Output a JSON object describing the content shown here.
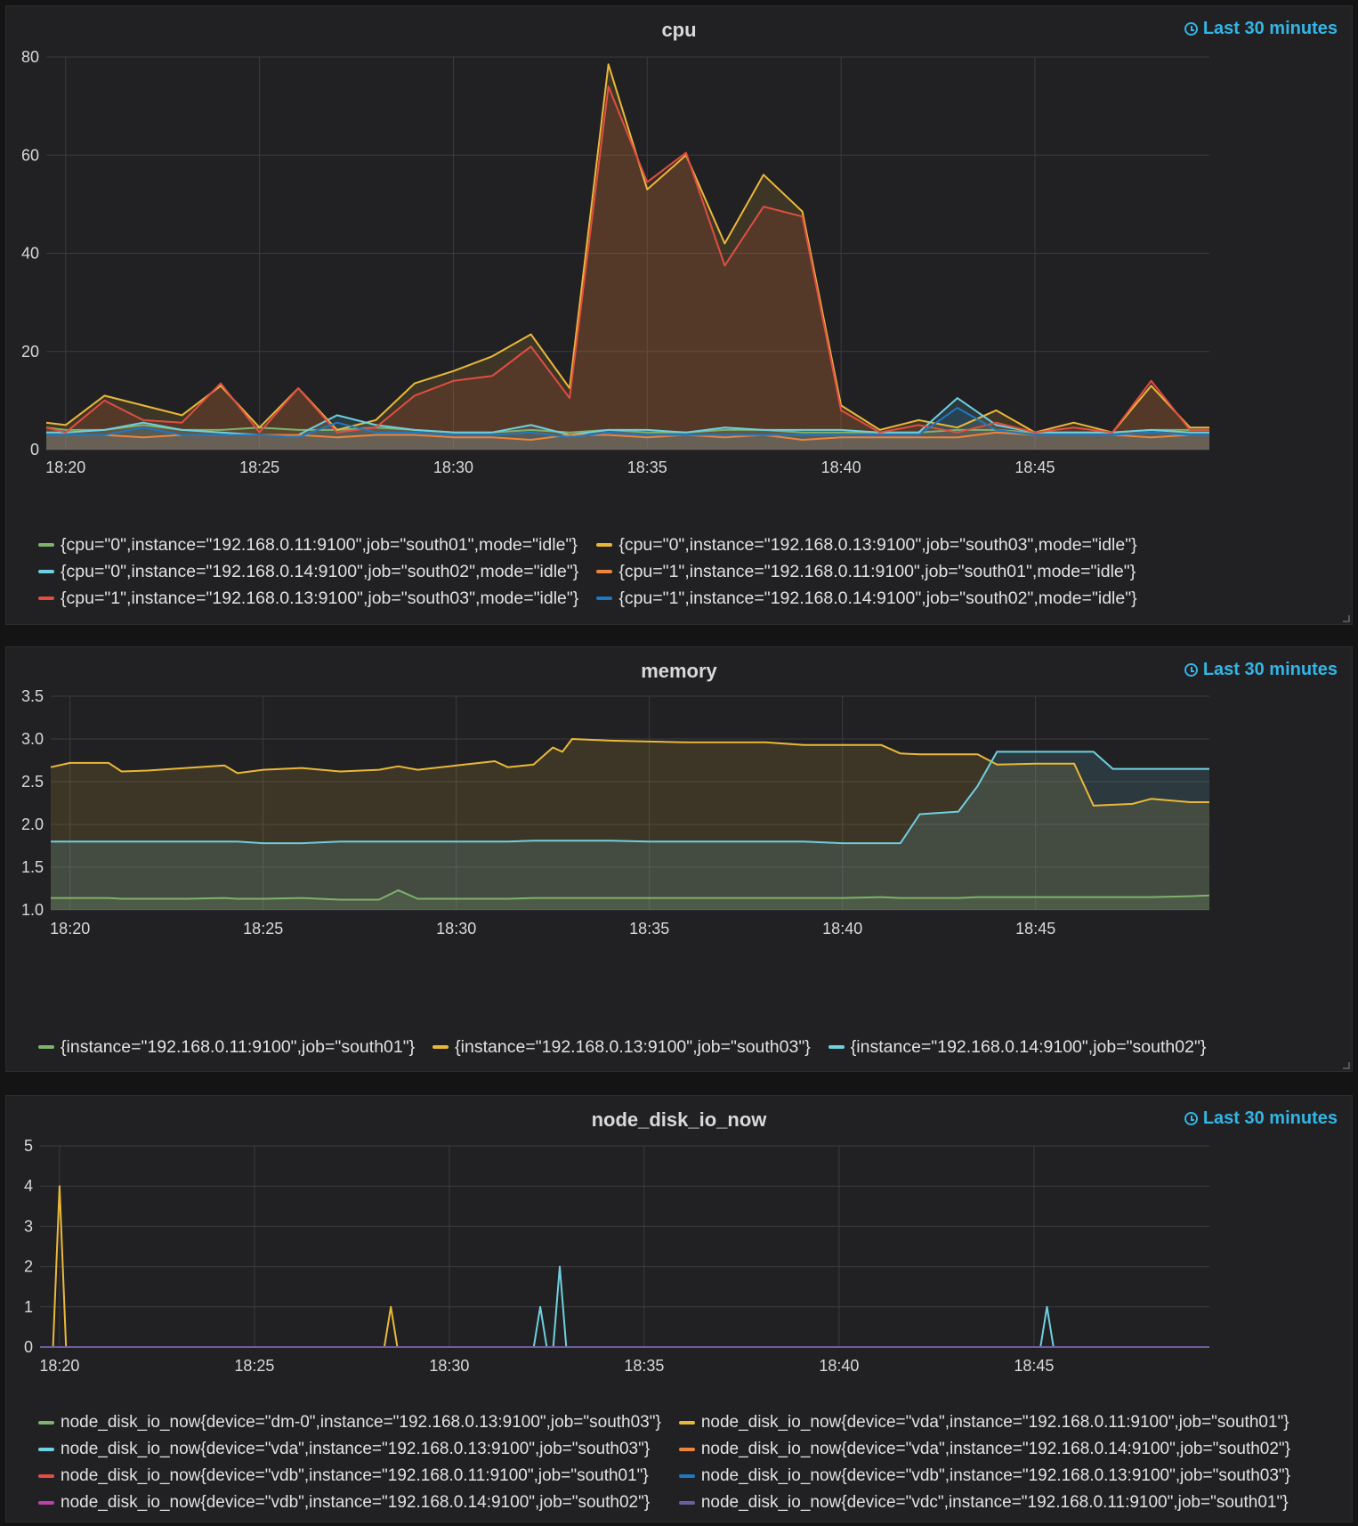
{
  "panels": [
    {
      "title": "cpu",
      "time_range": "Last 30 minutes",
      "icon": "clock-icon"
    },
    {
      "title": "memory",
      "time_range": "Last 30 minutes",
      "icon": "clock-icon"
    },
    {
      "title": "node_disk_io_now",
      "time_range": "Last 30 minutes",
      "icon": "clock-icon"
    }
  ],
  "chart_data": [
    {
      "type": "area",
      "title": "cpu",
      "xlabel": "",
      "ylabel": "",
      "x_ticks": [
        "18:20",
        "18:25",
        "18:30",
        "18:35",
        "18:40",
        "18:45"
      ],
      "y_ticks": [
        0,
        20,
        40,
        60,
        80
      ],
      "ylim": [
        0,
        80
      ],
      "xlim": [
        "18:19:30",
        "18:49:30"
      ],
      "grid": true,
      "legend_position": "bottom",
      "x": [
        "18:19:30",
        "18:20",
        "18:21",
        "18:22",
        "18:23",
        "18:24",
        "18:25",
        "18:26",
        "18:27",
        "18:28",
        "18:29",
        "18:30",
        "18:31",
        "18:32",
        "18:33",
        "18:34",
        "18:35",
        "18:36",
        "18:37",
        "18:38",
        "18:39",
        "18:40",
        "18:41",
        "18:42",
        "18:43",
        "18:44",
        "18:45",
        "18:46",
        "18:47",
        "18:48",
        "18:49",
        "18:49:30"
      ],
      "series": [
        {
          "name": "{cpu=\"0\",instance=\"192.168.0.11:9100\",job=\"south01\",mode=\"idle\"}",
          "color": "#7eb26d",
          "values": [
            4.5,
            4,
            4,
            5,
            4,
            4,
            4.5,
            4,
            4,
            4.5,
            4,
            3.5,
            3.5,
            4,
            3.5,
            4,
            3.5,
            3.5,
            4,
            4,
            3.5,
            3.5,
            3.5,
            3.5,
            4,
            4,
            3.5,
            3.5,
            3.5,
            4,
            4,
            4
          ]
        },
        {
          "name": "{cpu=\"0\",instance=\"192.168.0.13:9100\",job=\"south03\",mode=\"idle\"}",
          "color": "#eab839",
          "values": [
            5.5,
            5,
            11,
            9,
            7,
            13,
            4.5,
            12.5,
            4,
            6,
            13.5,
            16,
            19,
            23.5,
            12.5,
            78.5,
            53,
            60,
            42,
            56,
            48.5,
            9,
            4,
            6,
            4.5,
            8,
            3.5,
            5.5,
            3.5,
            13,
            4.5,
            4.5
          ]
        },
        {
          "name": "{cpu=\"0\",instance=\"192.168.0.14:9100\",job=\"south02\",mode=\"idle\"}",
          "color": "#6ed0e0",
          "values": [
            3.5,
            3.5,
            4,
            5.5,
            4,
            3.5,
            3,
            3,
            7,
            5,
            4,
            3.5,
            3.5,
            5,
            3,
            4,
            4,
            3.5,
            4.5,
            4,
            4,
            4,
            3.5,
            3.5,
            10.5,
            5,
            3.5,
            3.5,
            3.5,
            4,
            3.5,
            3.5
          ]
        },
        {
          "name": "{cpu=\"1\",instance=\"192.168.0.11:9100\",job=\"south01\",mode=\"idle\"}",
          "color": "#ef843c",
          "values": [
            3,
            3,
            3,
            2.5,
            3,
            3,
            3,
            3,
            2.5,
            3,
            3,
            2.5,
            2.5,
            2,
            3,
            3,
            2.5,
            3,
            2.5,
            3,
            2,
            2.5,
            2.5,
            2.5,
            2.5,
            3.5,
            3,
            3,
            3,
            2.5,
            3,
            3
          ]
        },
        {
          "name": "{cpu=\"1\",instance=\"192.168.0.13:9100\",job=\"south03\",mode=\"idle\"}",
          "color": "#e24d42",
          "values": [
            4.5,
            3.5,
            10,
            6,
            5.5,
            13.5,
            3.5,
            12.5,
            3.5,
            4.5,
            11,
            14,
            15,
            21,
            10.5,
            74,
            54.5,
            60.5,
            37.5,
            49.5,
            47.5,
            8,
            3.5,
            5,
            3.5,
            5.5,
            3.5,
            4.5,
            3.5,
            14,
            4,
            4
          ]
        },
        {
          "name": "{cpu=\"1\",instance=\"192.168.0.14:9100\",job=\"south02\",mode=\"idle\"}",
          "color": "#1f78c1",
          "values": [
            3,
            3,
            3,
            4.5,
            3,
            3,
            3,
            2.5,
            5.5,
            3.5,
            3.5,
            3,
            3,
            3.5,
            2.5,
            3.5,
            3,
            3,
            3,
            3,
            3,
            3,
            3,
            3,
            8.5,
            4,
            3,
            3,
            3,
            3.5,
            3,
            3
          ]
        }
      ]
    },
    {
      "type": "area",
      "title": "memory",
      "xlabel": "",
      "ylabel": "",
      "x_ticks": [
        "18:20",
        "18:25",
        "18:30",
        "18:35",
        "18:40",
        "18:45"
      ],
      "y_ticks": [
        1.0,
        1.5,
        2.0,
        2.5,
        3.0,
        3.5
      ],
      "ylim": [
        1.0,
        3.5
      ],
      "xlim": [
        "18:19:30",
        "18:49:30"
      ],
      "grid": true,
      "legend_position": "bottom",
      "x": [
        "18:19:30",
        "18:20",
        "18:21",
        "18:21:20",
        "18:22",
        "18:23",
        "18:24",
        "18:24:20",
        "18:25",
        "18:26",
        "18:27",
        "18:28",
        "18:28:30",
        "18:29",
        "18:30",
        "18:31",
        "18:31:20",
        "18:32",
        "18:32:30",
        "18:32:45",
        "18:33",
        "18:34",
        "18:35",
        "18:36",
        "18:37",
        "18:38",
        "18:39",
        "18:40",
        "18:41",
        "18:41:30",
        "18:42",
        "18:43",
        "18:43:30",
        "18:44",
        "18:45",
        "18:46",
        "18:46:30",
        "18:47",
        "18:47:30",
        "18:48",
        "18:49",
        "18:49:30"
      ],
      "series": [
        {
          "name": "{instance=\"192.168.0.11:9100\",job=\"south01\"}",
          "color": "#7eb26d",
          "values": [
            1.14,
            1.14,
            1.14,
            1.13,
            1.13,
            1.13,
            1.14,
            1.13,
            1.13,
            1.14,
            1.12,
            1.12,
            1.23,
            1.13,
            1.13,
            1.13,
            1.13,
            1.14,
            1.14,
            1.14,
            1.14,
            1.14,
            1.14,
            1.14,
            1.14,
            1.14,
            1.14,
            1.14,
            1.15,
            1.14,
            1.14,
            1.14,
            1.15,
            1.15,
            1.15,
            1.15,
            1.15,
            1.15,
            1.15,
            1.15,
            1.16,
            1.17
          ]
        },
        {
          "name": "{instance=\"192.168.0.13:9100\",job=\"south03\"}",
          "color": "#eab839",
          "values": [
            2.67,
            2.72,
            2.72,
            2.62,
            2.63,
            2.66,
            2.69,
            2.6,
            2.64,
            2.66,
            2.62,
            2.64,
            2.68,
            2.64,
            2.69,
            2.74,
            2.67,
            2.7,
            2.9,
            2.85,
            3.0,
            2.98,
            2.97,
            2.96,
            2.96,
            2.96,
            2.93,
            2.93,
            2.93,
            2.83,
            2.82,
            2.82,
            2.82,
            2.7,
            2.71,
            2.71,
            2.22,
            2.23,
            2.24,
            2.3,
            2.26,
            2.26
          ]
        },
        {
          "name": "{instance=\"192.168.0.14:9100\",job=\"south02\"}",
          "color": "#6ed0e0",
          "values": [
            1.8,
            1.8,
            1.8,
            1.8,
            1.8,
            1.8,
            1.8,
            1.8,
            1.78,
            1.78,
            1.8,
            1.8,
            1.8,
            1.8,
            1.8,
            1.8,
            1.8,
            1.81,
            1.81,
            1.81,
            1.81,
            1.81,
            1.8,
            1.8,
            1.8,
            1.8,
            1.8,
            1.78,
            1.78,
            1.78,
            2.12,
            2.15,
            2.45,
            2.85,
            2.85,
            2.85,
            2.85,
            2.65,
            2.65,
            2.65,
            2.65,
            2.65
          ]
        }
      ]
    },
    {
      "type": "line",
      "title": "node_disk_io_now",
      "xlabel": "",
      "ylabel": "",
      "x_ticks": [
        "18:20",
        "18:25",
        "18:30",
        "18:35",
        "18:40",
        "18:45"
      ],
      "y_ticks": [
        0,
        1,
        2,
        3,
        4,
        5
      ],
      "ylim": [
        0,
        5
      ],
      "xlim": [
        "18:19:30",
        "18:49:30"
      ],
      "grid": true,
      "legend_position": "bottom",
      "x": [
        "18:19:30",
        "18:19:50",
        "18:20",
        "18:20:10",
        "18:28:20",
        "18:28:30",
        "18:28:40",
        "18:32:10",
        "18:32:20",
        "18:32:30",
        "18:32:40",
        "18:32:50",
        "18:33",
        "18:45:10",
        "18:45:20",
        "18:45:30",
        "18:49:30"
      ],
      "series": [
        {
          "name": "node_disk_io_now{device=\"dm-0\",instance=\"192.168.0.13:9100\",job=\"south03\"}",
          "color": "#7eb26d",
          "values": [
            0,
            0,
            0,
            0,
            0,
            0,
            0,
            0,
            0,
            0,
            0,
            0,
            0,
            0,
            0,
            0,
            0
          ]
        },
        {
          "name": "node_disk_io_now{device=\"vda\",instance=\"192.168.0.11:9100\",job=\"south01\"}",
          "color": "#eab839",
          "values": [
            0,
            0,
            4,
            0,
            0,
            1,
            0,
            0,
            0,
            0,
            0,
            0,
            0,
            0,
            0,
            0,
            0
          ]
        },
        {
          "name": "node_disk_io_now{device=\"vda\",instance=\"192.168.0.13:9100\",job=\"south03\"}",
          "color": "#6ed0e0",
          "values": [
            0,
            0,
            0,
            0,
            0,
            0,
            0,
            0,
            1,
            0,
            0,
            2,
            0,
            0,
            1,
            0,
            0
          ]
        },
        {
          "name": "node_disk_io_now{device=\"vda\",instance=\"192.168.0.14:9100\",job=\"south02\"}",
          "color": "#ef843c",
          "values": [
            0,
            0,
            0,
            0,
            0,
            0,
            0,
            0,
            0,
            0,
            0,
            0,
            0,
            0,
            0,
            0,
            0
          ]
        },
        {
          "name": "node_disk_io_now{device=\"vdb\",instance=\"192.168.0.11:9100\",job=\"south01\"}",
          "color": "#e24d42",
          "values": [
            0,
            0,
            0,
            0,
            0,
            0,
            0,
            0,
            0,
            0,
            0,
            0,
            0,
            0,
            0,
            0,
            0
          ]
        },
        {
          "name": "node_disk_io_now{device=\"vdb\",instance=\"192.168.0.13:9100\",job=\"south03\"}",
          "color": "#1f78c1",
          "values": [
            0,
            0,
            0,
            0,
            0,
            0,
            0,
            0,
            0,
            0,
            0,
            0,
            0,
            0,
            0,
            0,
            0
          ]
        },
        {
          "name": "node_disk_io_now{device=\"vdb\",instance=\"192.168.0.14:9100\",job=\"south02\"}",
          "color": "#ba43a9",
          "values": [
            0,
            0,
            0,
            0,
            0,
            0,
            0,
            0,
            0,
            0,
            0,
            0,
            0,
            0,
            0,
            0,
            0
          ]
        },
        {
          "name": "node_disk_io_now{device=\"vdc\",instance=\"192.168.0.11:9100\",job=\"south01\"}",
          "color": "#705da0",
          "values": [
            0,
            0,
            0,
            0,
            0,
            0,
            0,
            0,
            0,
            0,
            0,
            0,
            0,
            0,
            0,
            0,
            0
          ]
        }
      ]
    }
  ]
}
